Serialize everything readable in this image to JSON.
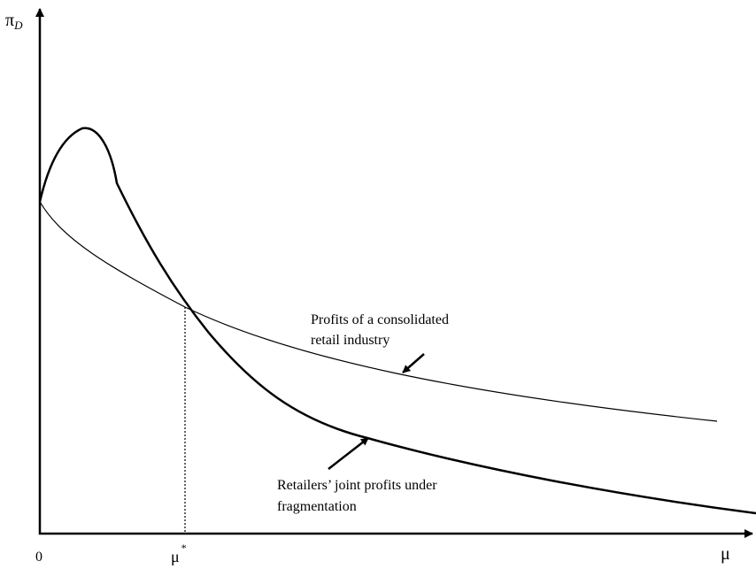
{
  "axes": {
    "y_label": "π",
    "y_label_sub": "D",
    "x_label": "μ",
    "origin_label": "0"
  },
  "crossing": {
    "label": "μ",
    "label_sup": "*"
  },
  "curves": {
    "consolidated": {
      "label_line1": "Profits of a consolidated",
      "label_line2": "retail industry"
    },
    "fragmented": {
      "label_line1": "Retailers’ joint profits under",
      "label_line2": "fragmentation"
    }
  },
  "colors": {
    "ink": "#000000",
    "background": "#ffffff"
  }
}
